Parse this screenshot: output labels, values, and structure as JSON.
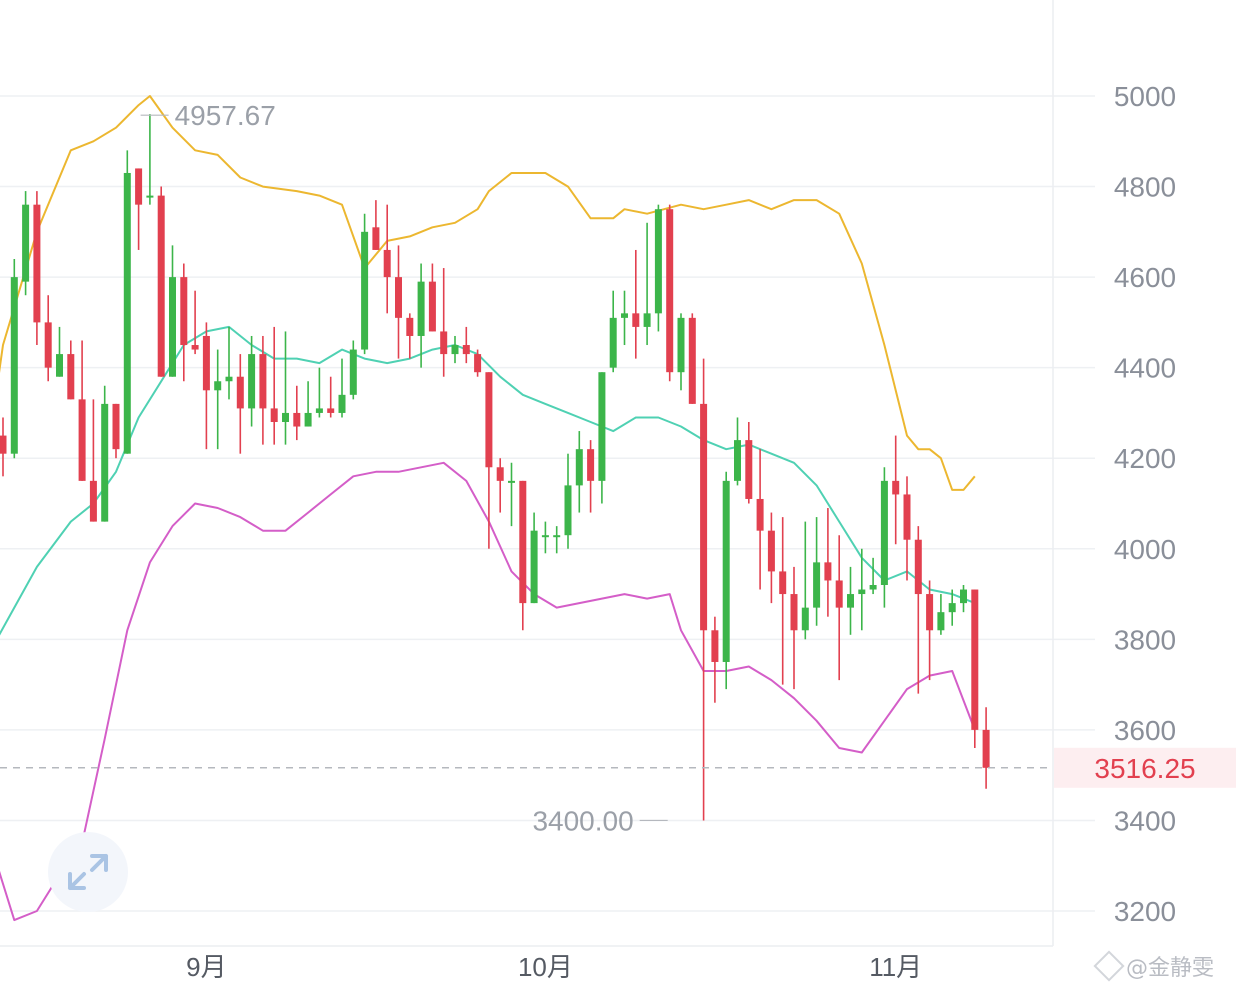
{
  "chart_data": {
    "type": "candlestick",
    "y_axis": {
      "ticks": [
        5000,
        4800,
        4600,
        4400,
        4200,
        4000,
        3800,
        3600,
        3400,
        3200
      ],
      "ylim": [
        3125,
        5205
      ],
      "side": "right"
    },
    "x_axis": {
      "ticks": [
        {
          "label": "9月",
          "index": 18
        },
        {
          "label": "10月",
          "index": 48
        },
        {
          "label": "11月",
          "index": 79
        }
      ]
    },
    "grid": true,
    "current_price": {
      "value": 3516.25,
      "label": "3516.25"
    },
    "annotations": [
      {
        "text": "4957.67",
        "value": 4957.67,
        "index": 12,
        "kind": "high"
      },
      {
        "text": "3400.00",
        "value": 3400.0,
        "index": 59,
        "kind": "low"
      }
    ],
    "colors": {
      "up": "#3cb54a",
      "down": "#e2404f",
      "upper_band": "#ecb730",
      "middle_band": "#4fd1b3",
      "lower_band": "#d45ec8",
      "grid": "#eef0f3",
      "current_line": "#b5b8be"
    },
    "candles": [
      [
        4250,
        4210,
        4290,
        4160
      ],
      [
        4210,
        4600,
        4640,
        4200
      ],
      [
        4590,
        4760,
        4790,
        4560
      ],
      [
        4760,
        4500,
        4790,
        4450
      ],
      [
        4500,
        4400,
        4560,
        4370
      ],
      [
        4380,
        4430,
        4490,
        4380
      ],
      [
        4430,
        4330,
        4460,
        4330
      ],
      [
        4330,
        4150,
        4460,
        4220
      ],
      [
        4150,
        4060,
        4330,
        4060
      ],
      [
        4060,
        4320,
        4360,
        4060
      ],
      [
        4320,
        4220,
        4320,
        4200
      ],
      [
        4210,
        4830,
        4880,
        4210
      ],
      [
        4840,
        4760,
        4840,
        4660
      ],
      [
        4780,
        4780,
        4960,
        4760
      ],
      [
        4780,
        4380,
        4800,
        4380
      ],
      [
        4380,
        4600,
        4670,
        4380
      ],
      [
        4600,
        4450,
        4630,
        4370
      ],
      [
        4450,
        4440,
        4570,
        4430
      ],
      [
        4470,
        4350,
        4500,
        4220
      ],
      [
        4350,
        4370,
        4440,
        4220
      ],
      [
        4370,
        4380,
        4490,
        4330
      ],
      [
        4380,
        4310,
        4430,
        4210
      ],
      [
        4310,
        4430,
        4470,
        4270
      ],
      [
        4430,
        4310,
        4470,
        4230
      ],
      [
        4310,
        4280,
        4490,
        4230
      ],
      [
        4280,
        4300,
        4480,
        4230
      ],
      [
        4300,
        4270,
        4360,
        4240
      ],
      [
        4270,
        4300,
        4370,
        4270
      ],
      [
        4300,
        4310,
        4400,
        4290
      ],
      [
        4310,
        4300,
        4380,
        4290
      ],
      [
        4300,
        4340,
        4420,
        4290
      ],
      [
        4340,
        4440,
        4460,
        4330
      ],
      [
        4440,
        4700,
        4740,
        4430
      ],
      [
        4710,
        4660,
        4770,
        4660
      ],
      [
        4660,
        4600,
        4760,
        4520
      ],
      [
        4600,
        4510,
        4670,
        4420
      ],
      [
        4510,
        4470,
        4520,
        4420
      ],
      [
        4470,
        4590,
        4630,
        4400
      ],
      [
        4590,
        4480,
        4630,
        4480
      ],
      [
        4480,
        4430,
        4620,
        4380
      ],
      [
        4430,
        4450,
        4470,
        4410
      ],
      [
        4450,
        4430,
        4490,
        4410
      ],
      [
        4430,
        4390,
        4440,
        4380
      ],
      [
        4390,
        4180,
        4390,
        4000
      ],
      [
        4180,
        4150,
        4200,
        4080
      ],
      [
        4150,
        4150,
        4190,
        4050
      ],
      [
        4150,
        3880,
        4150,
        3820
      ],
      [
        3880,
        4040,
        4080,
        3880
      ],
      [
        4030,
        4030,
        4060,
        3990
      ],
      [
        4030,
        4030,
        4050,
        3990
      ],
      [
        4030,
        4140,
        4210,
        4000
      ],
      [
        4140,
        4220,
        4260,
        4080
      ],
      [
        4220,
        4150,
        4240,
        4080
      ],
      [
        4150,
        4390,
        4270,
        4100
      ],
      [
        4400,
        4510,
        4570,
        4390
      ],
      [
        4510,
        4520,
        4570,
        4450
      ],
      [
        4520,
        4490,
        4660,
        4420
      ],
      [
        4490,
        4520,
        4720,
        4450
      ],
      [
        4520,
        4750,
        4760,
        4480
      ],
      [
        4750,
        4390,
        4760,
        4370
      ],
      [
        4390,
        4510,
        4520,
        4350
      ],
      [
        4510,
        4320,
        4520,
        4320
      ],
      [
        4320,
        3820,
        4420,
        3400
      ],
      [
        3820,
        3750,
        3850,
        3660
      ],
      [
        3750,
        4150,
        4170,
        3690
      ],
      [
        4150,
        4240,
        4290,
        4140
      ],
      [
        4240,
        4110,
        4280,
        4100
      ],
      [
        4110,
        4040,
        4220,
        3910
      ],
      [
        4040,
        3950,
        4080,
        3880
      ],
      [
        3950,
        3900,
        4070,
        3700
      ],
      [
        3900,
        3820,
        3960,
        3690
      ],
      [
        3820,
        3870,
        4060,
        3800
      ],
      [
        3870,
        3970,
        4070,
        3830
      ],
      [
        3970,
        3930,
        4090,
        3850
      ],
      [
        3930,
        3870,
        4030,
        3710
      ],
      [
        3870,
        3900,
        3960,
        3810
      ],
      [
        3900,
        3910,
        4000,
        3820
      ],
      [
        3910,
        3920,
        3980,
        3900
      ],
      [
        3920,
        4150,
        4180,
        3870
      ],
      [
        4150,
        4120,
        4250,
        4010
      ],
      [
        4120,
        4020,
        4160,
        3930
      ],
      [
        4020,
        3900,
        4050,
        3680
      ],
      [
        3900,
        3820,
        3930,
        3710
      ],
      [
        3820,
        3860,
        3900,
        3810
      ],
      [
        3860,
        3880,
        3910,
        3830
      ],
      [
        3880,
        3910,
        3920,
        3860
      ],
      [
        3910,
        3600,
        3910,
        3560
      ],
      [
        3600,
        3516.25,
        3650,
        3470
      ]
    ],
    "bands": {
      "upper": [
        [
          -2,
          4100
        ],
        [
          0,
          4450
        ],
        [
          3,
          4700
        ],
        [
          6,
          4880
        ],
        [
          8,
          4900
        ],
        [
          10,
          4930
        ],
        [
          12,
          4980
        ],
        [
          13,
          5000
        ],
        [
          15,
          4930
        ],
        [
          17,
          4880
        ],
        [
          19,
          4870
        ],
        [
          21,
          4820
        ],
        [
          23,
          4800
        ],
        [
          26,
          4790
        ],
        [
          28,
          4780
        ],
        [
          30,
          4760
        ],
        [
          32,
          4620
        ],
        [
          34,
          4680
        ],
        [
          36,
          4690
        ],
        [
          38,
          4710
        ],
        [
          40,
          4720
        ],
        [
          42,
          4750
        ],
        [
          43,
          4790
        ],
        [
          45,
          4830
        ],
        [
          48,
          4830
        ],
        [
          50,
          4800
        ],
        [
          52,
          4730
        ],
        [
          54,
          4730
        ],
        [
          55,
          4750
        ],
        [
          57,
          4740
        ],
        [
          60,
          4760
        ],
        [
          62,
          4750
        ],
        [
          64,
          4760
        ],
        [
          66,
          4770
        ],
        [
          68,
          4750
        ],
        [
          70,
          4770
        ],
        [
          72,
          4770
        ],
        [
          74,
          4740
        ],
        [
          76,
          4630
        ],
        [
          78,
          4450
        ],
        [
          80,
          4250
        ],
        [
          81,
          4220
        ],
        [
          82,
          4220
        ],
        [
          83,
          4200
        ],
        [
          84,
          4130
        ],
        [
          85,
          4130
        ],
        [
          86,
          4160
        ]
      ],
      "middle": [
        [
          -1,
          3780
        ],
        [
          1,
          3870
        ],
        [
          3,
          3960
        ],
        [
          6,
          4060
        ],
        [
          8,
          4100
        ],
        [
          10,
          4170
        ],
        [
          12,
          4290
        ],
        [
          14,
          4370
        ],
        [
          16,
          4450
        ],
        [
          18,
          4480
        ],
        [
          20,
          4490
        ],
        [
          22,
          4450
        ],
        [
          24,
          4420
        ],
        [
          26,
          4420
        ],
        [
          28,
          4410
        ],
        [
          30,
          4440
        ],
        [
          32,
          4420
        ],
        [
          34,
          4410
        ],
        [
          36,
          4420
        ],
        [
          38,
          4440
        ],
        [
          40,
          4450
        ],
        [
          42,
          4430
        ],
        [
          44,
          4380
        ],
        [
          46,
          4340
        ],
        [
          48,
          4320
        ],
        [
          50,
          4300
        ],
        [
          52,
          4280
        ],
        [
          54,
          4260
        ],
        [
          56,
          4290
        ],
        [
          58,
          4290
        ],
        [
          60,
          4270
        ],
        [
          62,
          4240
        ],
        [
          64,
          4220
        ],
        [
          66,
          4230
        ],
        [
          68,
          4210
        ],
        [
          70,
          4190
        ],
        [
          72,
          4140
        ],
        [
          74,
          4060
        ],
        [
          76,
          3980
        ],
        [
          78,
          3930
        ],
        [
          80,
          3950
        ],
        [
          82,
          3910
        ],
        [
          84,
          3900
        ],
        [
          86,
          3880
        ]
      ],
      "lower": [
        [
          -1,
          3340
        ],
        [
          1,
          3180
        ],
        [
          3,
          3200
        ],
        [
          5,
          3280
        ],
        [
          7,
          3350
        ],
        [
          9,
          3580
        ],
        [
          11,
          3820
        ],
        [
          13,
          3970
        ],
        [
          15,
          4050
        ],
        [
          17,
          4100
        ],
        [
          19,
          4090
        ],
        [
          21,
          4070
        ],
        [
          23,
          4040
        ],
        [
          25,
          4040
        ],
        [
          27,
          4080
        ],
        [
          29,
          4120
        ],
        [
          31,
          4160
        ],
        [
          33,
          4170
        ],
        [
          35,
          4170
        ],
        [
          37,
          4180
        ],
        [
          39,
          4190
        ],
        [
          41,
          4150
        ],
        [
          43,
          4060
        ],
        [
          45,
          3950
        ],
        [
          47,
          3900
        ],
        [
          49,
          3870
        ],
        [
          51,
          3880
        ],
        [
          53,
          3890
        ],
        [
          55,
          3900
        ],
        [
          57,
          3890
        ],
        [
          59,
          3900
        ],
        [
          60,
          3820
        ],
        [
          62,
          3730
        ],
        [
          64,
          3730
        ],
        [
          66,
          3740
        ],
        [
          68,
          3710
        ],
        [
          70,
          3670
        ],
        [
          72,
          3620
        ],
        [
          74,
          3560
        ],
        [
          76,
          3550
        ],
        [
          78,
          3620
        ],
        [
          80,
          3690
        ],
        [
          82,
          3720
        ],
        [
          84,
          3730
        ],
        [
          86,
          3600
        ]
      ]
    }
  },
  "zoom_control": {
    "icon": "expand-icon"
  },
  "watermark": {
    "text": "@金静雯"
  }
}
